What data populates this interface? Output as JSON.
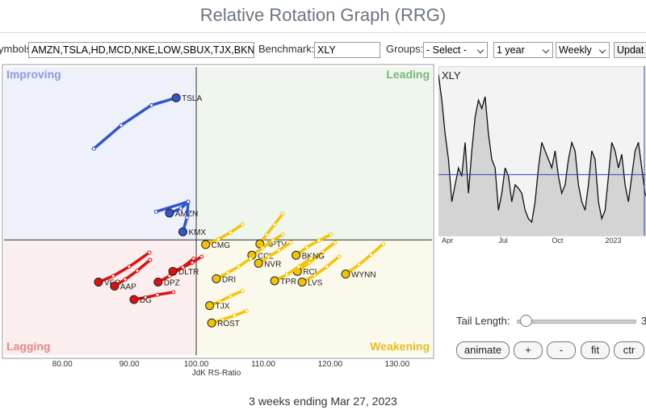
{
  "title": "Relative Rotation Graph (RRG)",
  "toolbar": {
    "symbols_label": "ymbols:",
    "symbols": "AMZN,TSLA,HD,MCD,NKE,LOW,SBUX,TJX,BKNG",
    "benchmark_label": "Benchmark:",
    "benchmark": "XLY",
    "groups_label": "Groups:",
    "groups": "- Select -",
    "period": "1 year",
    "interval": "Weekly",
    "update": "Updat"
  },
  "chart_data": {
    "type": "rrg",
    "x_label": "JdK RS-Ratio",
    "quadrants": {
      "improving": "Improving",
      "leading": "Leading",
      "lagging": "Lagging",
      "weakening": "Weakening"
    },
    "xlim": [
      71.3,
      135.2
    ],
    "ylim": [
      82.8,
      125.8
    ],
    "center": 100,
    "xticks": [
      {
        "value": 80,
        "label": "80.00"
      },
      {
        "value": 90,
        "label": "90.00"
      },
      {
        "value": 100,
        "label": "100.00"
      },
      {
        "value": 110,
        "label": "110.00"
      },
      {
        "value": 120,
        "label": "120.00"
      },
      {
        "value": 130,
        "label": "130.00"
      }
    ],
    "series": [
      {
        "name": "TSLA",
        "color": "#3355cc",
        "x": [
          84.7,
          88.8,
          93.3,
          97.0
        ],
        "y": [
          113.6,
          117.1,
          120.1,
          121.2
        ]
      },
      {
        "name": "AMZN",
        "color": "#3355cc",
        "x": [
          94.0,
          98.8,
          97.7,
          96.0
        ],
        "y": [
          104.2,
          105.7,
          104.7,
          104.0
        ]
      },
      {
        "name": "KMX",
        "color": "#3355cc",
        "x": [
          98.8,
          98.6,
          98.0
        ],
        "y": [
          105.7,
          103.3,
          101.2
        ]
      },
      {
        "name": "VFC",
        "color": "#e01010",
        "x": [
          93.0,
          90.0,
          87.6,
          85.4
        ],
        "y": [
          98.1,
          96.0,
          94.6,
          93.7
        ]
      },
      {
        "name": "AAP",
        "color": "#e01010",
        "x": [
          93.1,
          91.2,
          89.4,
          87.8
        ],
        "y": [
          97.0,
          95.4,
          94.1,
          93.1
        ]
      },
      {
        "name": "DG",
        "color": "#e01010",
        "x": [
          96.6,
          94.2,
          92.4,
          90.7
        ],
        "y": [
          92.2,
          91.8,
          91.4,
          91.1
        ]
      },
      {
        "name": "DPZ",
        "color": "#e01010",
        "x": [
          99.6,
          97.8,
          96.0,
          94.3
        ],
        "y": [
          97.2,
          95.8,
          94.6,
          93.7
        ]
      },
      {
        "name": "DLTR",
        "color": "#e01010",
        "x": [
          100.8,
          99.4,
          98.0,
          96.5
        ],
        "y": [
          97.5,
          96.6,
          95.9,
          95.3
        ]
      },
      {
        "name": "WYNN",
        "color": "#f5c400",
        "x": [
          127.9,
          126.1,
          124.3,
          122.3
        ],
        "y": [
          99.4,
          97.8,
          96.3,
          94.9
        ]
      },
      {
        "name": "RCL",
        "color": "#f5c400",
        "x": [
          120.7,
          118.9,
          116.9,
          115.1
        ],
        "y": [
          99.6,
          98.2,
          96.6,
          95.3
        ]
      },
      {
        "name": "LVS",
        "color": "#f5c400",
        "x": [
          121.3,
          119.5,
          117.7,
          115.8
        ],
        "y": [
          97.5,
          96.0,
          94.7,
          93.7
        ]
      },
      {
        "name": "CMG",
        "color": "#f5c400",
        "x": [
          106.9,
          105.1,
          103.3,
          101.4
        ],
        "y": [
          102.3,
          101.1,
          100.1,
          99.3
        ]
      },
      {
        "name": "APTV",
        "color": "#f5c400",
        "x": [
          112.9,
          111.7,
          110.5,
          109.5
        ],
        "y": [
          103.9,
          102.3,
          100.8,
          99.4
        ]
      },
      {
        "name": "BKNG",
        "color": "#f5c400",
        "x": [
          120.1,
          118.3,
          116.5,
          114.9
        ],
        "y": [
          100.8,
          99.9,
          98.9,
          97.7
        ]
      },
      {
        "name": "CCL",
        "color": "#f5c400",
        "x": [
          112.9,
          111.4,
          109.9,
          108.3
        ],
        "y": [
          100.8,
          99.9,
          98.8,
          97.7
        ]
      },
      {
        "name": "NVR",
        "color": "#f5c400",
        "x": [
          114.1,
          112.3,
          110.8,
          109.3
        ],
        "y": [
          99.6,
          98.4,
          97.5,
          96.5
        ]
      },
      {
        "name": "TPR",
        "color": "#f5c400",
        "x": [
          117.1,
          115.3,
          113.5,
          111.7
        ],
        "y": [
          97.2,
          96.0,
          94.8,
          93.9
        ]
      },
      {
        "name": "DRI",
        "color": "#f5c400",
        "x": [
          108.1,
          106.3,
          104.7,
          103.0
        ],
        "y": [
          97.2,
          96.0,
          95.1,
          94.2
        ]
      },
      {
        "name": "TJX",
        "color": "#f5c400",
        "x": [
          106.9,
          105.1,
          103.5,
          102.0
        ],
        "y": [
          92.4,
          91.6,
          90.8,
          90.2
        ]
      },
      {
        "name": "ROST",
        "color": "#f5c400",
        "x": [
          107.5,
          105.7,
          103.9,
          102.3
        ],
        "y": [
          89.4,
          88.7,
          88.1,
          87.6
        ]
      }
    ]
  },
  "side_chart": {
    "type": "area",
    "title": "XLY",
    "labels": [
      "Apr",
      "Jul",
      "Oct",
      "2023"
    ],
    "label_positions": [
      1,
      18,
      34,
      50
    ],
    "ylim": [
      0,
      100
    ],
    "reference_line": 36,
    "values": [
      95,
      80,
      60,
      45,
      20,
      30,
      40,
      35,
      55,
      25,
      50,
      70,
      80,
      75,
      82,
      60,
      45,
      40,
      15,
      25,
      40,
      35,
      20,
      30,
      28,
      25,
      15,
      10,
      8,
      20,
      40,
      55,
      50,
      45,
      40,
      50,
      35,
      25,
      30,
      45,
      55,
      50,
      30,
      20,
      15,
      30,
      50,
      45,
      20,
      10,
      15,
      35,
      55,
      50,
      40,
      48,
      30,
      20,
      35,
      50,
      55,
      40,
      25,
      20
    ]
  },
  "controls": {
    "tail_label": "Tail Length:",
    "tail_value": "3",
    "buttons": [
      "animate",
      "+",
      "-",
      "fit",
      "ctr"
    ]
  },
  "footer": "3 weeks ending Mar 27, 2023"
}
